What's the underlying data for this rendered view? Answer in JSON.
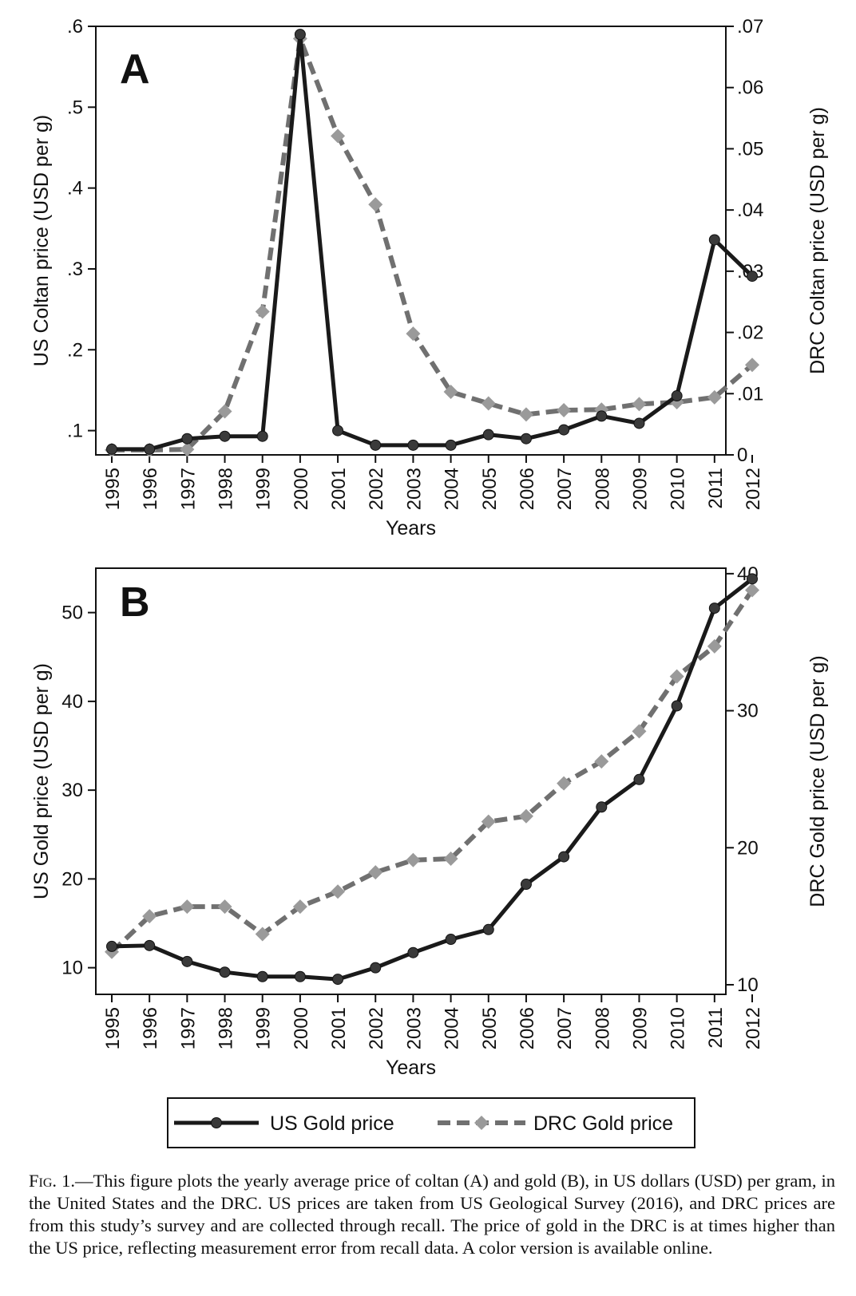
{
  "chart_data": [
    {
      "type": "line",
      "panel_label": "A",
      "x": [
        1995,
        1996,
        1997,
        1998,
        1999,
        2000,
        2001,
        2002,
        2003,
        2004,
        2005,
        2006,
        2007,
        2008,
        2009,
        2010,
        2011,
        2012
      ],
      "xlabel": "Years",
      "ylabel": "US Coltan price (USD per g)",
      "ylabel_right": "DRC Coltan price (USD per g)",
      "ylim": [
        0.07,
        0.6
      ],
      "ylim_right": [
        0,
        0.07
      ],
      "yticks": [
        0.1,
        0.2,
        0.3,
        0.4,
        0.5,
        0.6
      ],
      "ytick_labels": [
        ".1",
        ".2",
        ".3",
        ".4",
        ".5",
        ".6"
      ],
      "yticks_right": [
        0,
        0.01,
        0.02,
        0.03,
        0.04,
        0.05,
        0.06,
        0.07
      ],
      "ytick_labels_right": [
        "0",
        ".01",
        ".02",
        ".03",
        ".04",
        ".05",
        ".06",
        ".07"
      ],
      "series": [
        {
          "axis": "left",
          "color": "#1a1a1a",
          "marker": "circle",
          "dash": "solid",
          "values": [
            0.077,
            0.077,
            0.09,
            0.093,
            0.093,
            0.59,
            0.1,
            0.082,
            0.082,
            0.082,
            0.095,
            0.09,
            0.101,
            0.118,
            0.109,
            0.143,
            0.336,
            0.291
          ]
        },
        {
          "axis": "right",
          "color": "#707070",
          "marker": "diamond",
          "dash": "dashed",
          "values": [
            0.0008,
            0.0008,
            0.0009,
            0.0071,
            0.0234,
            0.068,
            0.0521,
            0.0409,
            0.0198,
            0.0103,
            0.0084,
            0.0066,
            0.0073,
            0.0074,
            0.0083,
            0.0086,
            0.0094,
            0.0147
          ]
        }
      ]
    },
    {
      "type": "line",
      "panel_label": "B",
      "x": [
        1995,
        1996,
        1997,
        1998,
        1999,
        2000,
        2001,
        2002,
        2003,
        2004,
        2005,
        2006,
        2007,
        2008,
        2009,
        2010,
        2011,
        2012
      ],
      "xlabel": "Years",
      "ylabel": "US Gold price (USD per g)",
      "ylabel_right": "DRC Gold price (USD per g)",
      "ylim": [
        7,
        55
      ],
      "ylim_right": [
        9.3,
        40.4
      ],
      "yticks": [
        10,
        20,
        30,
        40,
        50
      ],
      "ytick_labels": [
        "10",
        "20",
        "30",
        "40",
        "50"
      ],
      "yticks_right": [
        10,
        20,
        30,
        40
      ],
      "ytick_labels_right": [
        "10",
        "20",
        "30",
        "40"
      ],
      "series": [
        {
          "name": "US Gold price",
          "axis": "left",
          "color": "#1a1a1a",
          "marker": "circle",
          "dash": "solid",
          "values": [
            12.4,
            12.5,
            10.7,
            9.5,
            9.0,
            9.0,
            8.7,
            10.0,
            11.7,
            13.2,
            14.3,
            19.4,
            22.5,
            28.1,
            31.2,
            39.5,
            50.5,
            53.8
          ]
        },
        {
          "name": "DRC Gold price",
          "axis": "right",
          "color": "#707070",
          "marker": "diamond",
          "dash": "dashed",
          "values": [
            12.4,
            15.0,
            15.7,
            15.7,
            13.7,
            15.7,
            16.8,
            18.2,
            19.1,
            19.2,
            21.9,
            22.3,
            24.7,
            26.3,
            28.5,
            32.5,
            34.7,
            38.8
          ]
        }
      ]
    }
  ],
  "caption": {
    "fig_label": "Fig. 1.",
    "text": "—This figure plots the yearly average price of coltan (A) and gold (B), in US dollars (USD) per gram, in the United States and the DRC. US prices are taken from US Geological Survey (2016), and DRC prices are from this study’s survey and are collected through recall. The price of gold in the DRC is at times higher than the US price, reflecting measurement error from recall data. A color version is available online."
  }
}
